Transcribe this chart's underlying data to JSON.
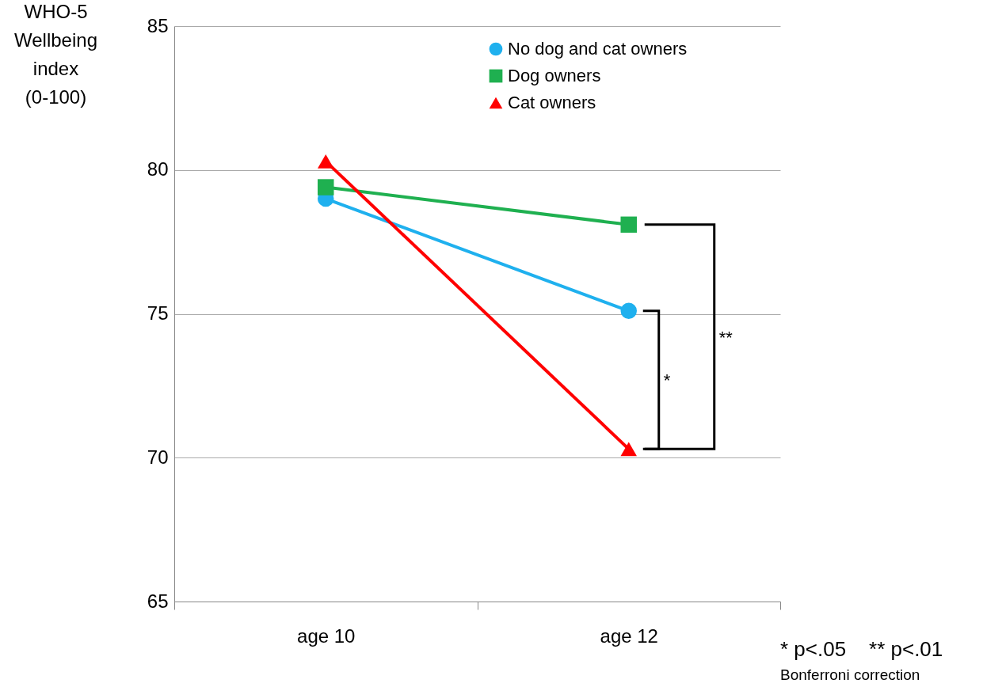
{
  "chart_data": {
    "type": "line",
    "ylabel": "WHO-5 Wellbeing index (0-100)",
    "categories": [
      "age 10",
      "age 12"
    ],
    "series": [
      {
        "name": "No dog and cat owners",
        "color": "#1fb0ee",
        "marker": "circle",
        "values": [
          79.0,
          75.1
        ]
      },
      {
        "name": "Dog owners",
        "color": "#1fb050",
        "marker": "square",
        "values": [
          79.4,
          78.1
        ]
      },
      {
        "name": "Cat owners",
        "color": "#ff0000",
        "marker": "triangle",
        "values": [
          80.3,
          70.3
        ]
      }
    ],
    "ylim": [
      65,
      85
    ],
    "yticks": [
      65,
      70,
      75,
      80,
      85
    ],
    "grid": "y",
    "legend": "top right",
    "annotations": [
      "*",
      "**",
      "* p<.05    ** p<.01",
      "Bonferroni correction"
    ]
  }
}
